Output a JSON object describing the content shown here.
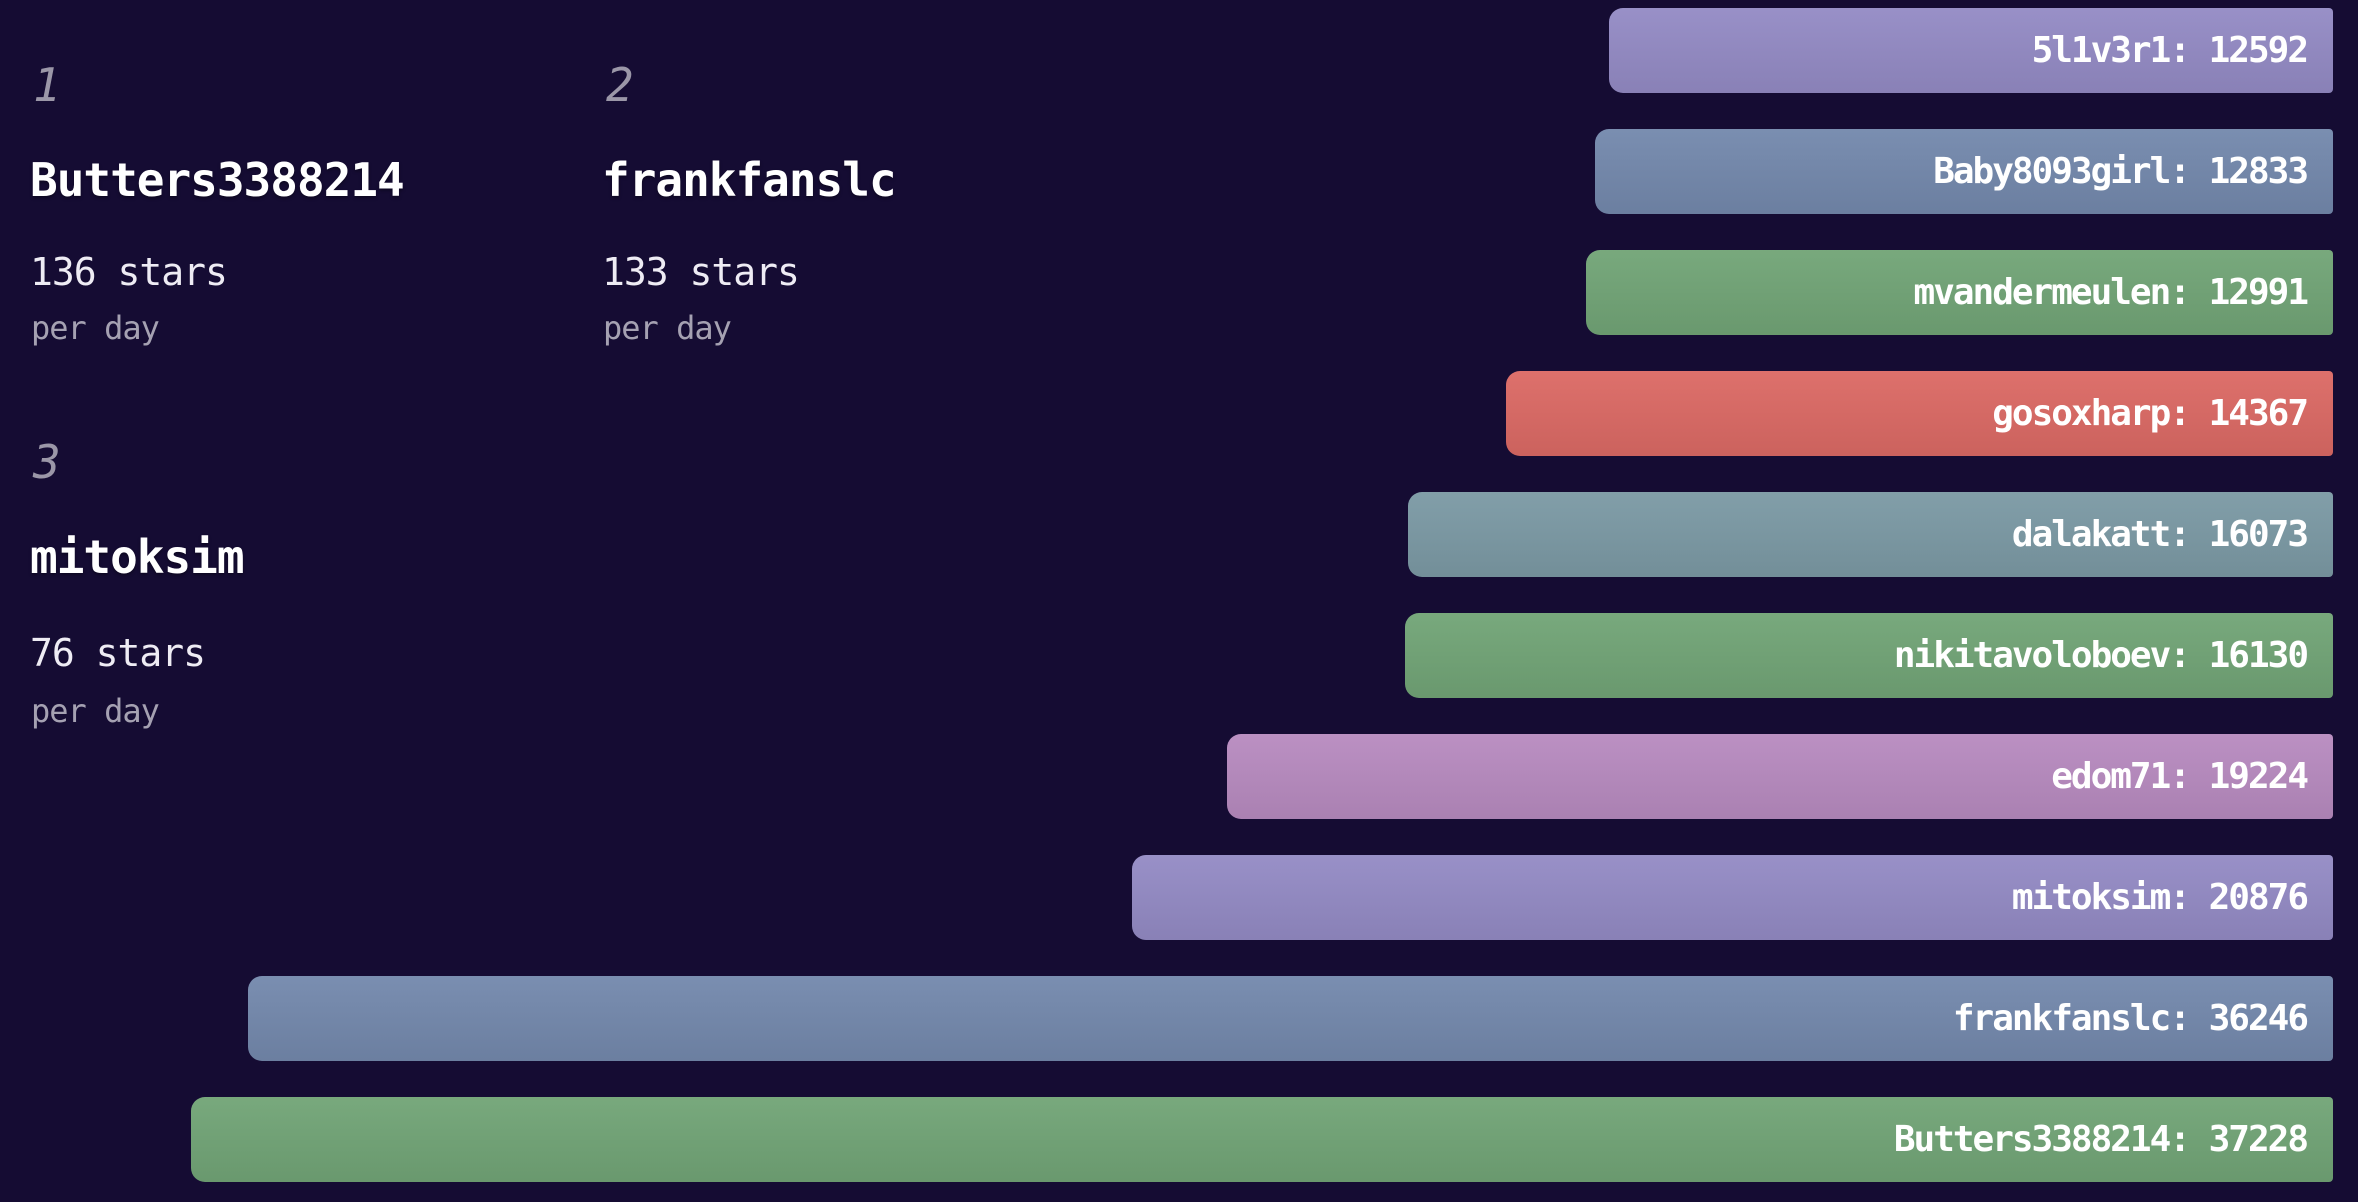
{
  "colors": {
    "background": "#150c33",
    "bar_label_text": "#ffffff",
    "rank_text": "#9b97a8",
    "name_text": "#ffffff",
    "rate_text": "#eeecf4",
    "unit_text": "#a5a1b2",
    "palette": {
      "purple": "#948bc5",
      "blue_gray": "#7489ad",
      "green": "#72a577",
      "red": "#dc6a65",
      "teal": "#7c9aa5",
      "mauve": "#b88bc0"
    }
  },
  "chart_data": {
    "type": "bar",
    "orientation": "horizontal",
    "alignment": "right",
    "label_format": "{name}: {value}",
    "x_range": [
      0,
      37228
    ],
    "grid": false,
    "legend": false,
    "bars": [
      {
        "label": "5l1v3r1",
        "value": 12592,
        "color": "#948bc5"
      },
      {
        "label": "Baby8093girl",
        "value": 12833,
        "color": "#7489ad"
      },
      {
        "label": "mvandermeulen",
        "value": 12991,
        "color": "#72a577"
      },
      {
        "label": "gosoxharp",
        "value": 14367,
        "color": "#dc6a65"
      },
      {
        "label": "dalakatt",
        "value": 16073,
        "color": "#7c9aa5"
      },
      {
        "label": "nikitavoloboev",
        "value": 16130,
        "color": "#72a577"
      },
      {
        "label": "edom71",
        "value": 19224,
        "color": "#b88bc0"
      },
      {
        "label": "mitoksim",
        "value": 20876,
        "color": "#948bc5"
      },
      {
        "label": "frankfanslc",
        "value": 36246,
        "color": "#7489ad"
      },
      {
        "label": "Butters3388214",
        "value": 37228,
        "color": "#72a577"
      }
    ]
  },
  "leaderboard": [
    {
      "rank": "1",
      "name": "Butters3388214",
      "rate": "136 stars",
      "unit": "per day"
    },
    {
      "rank": "2",
      "name": "frankfanslc",
      "rate": "133 stars",
      "unit": "per day"
    },
    {
      "rank": "3",
      "name": "mitoksim",
      "rate": "76 stars",
      "unit": "per day"
    }
  ]
}
